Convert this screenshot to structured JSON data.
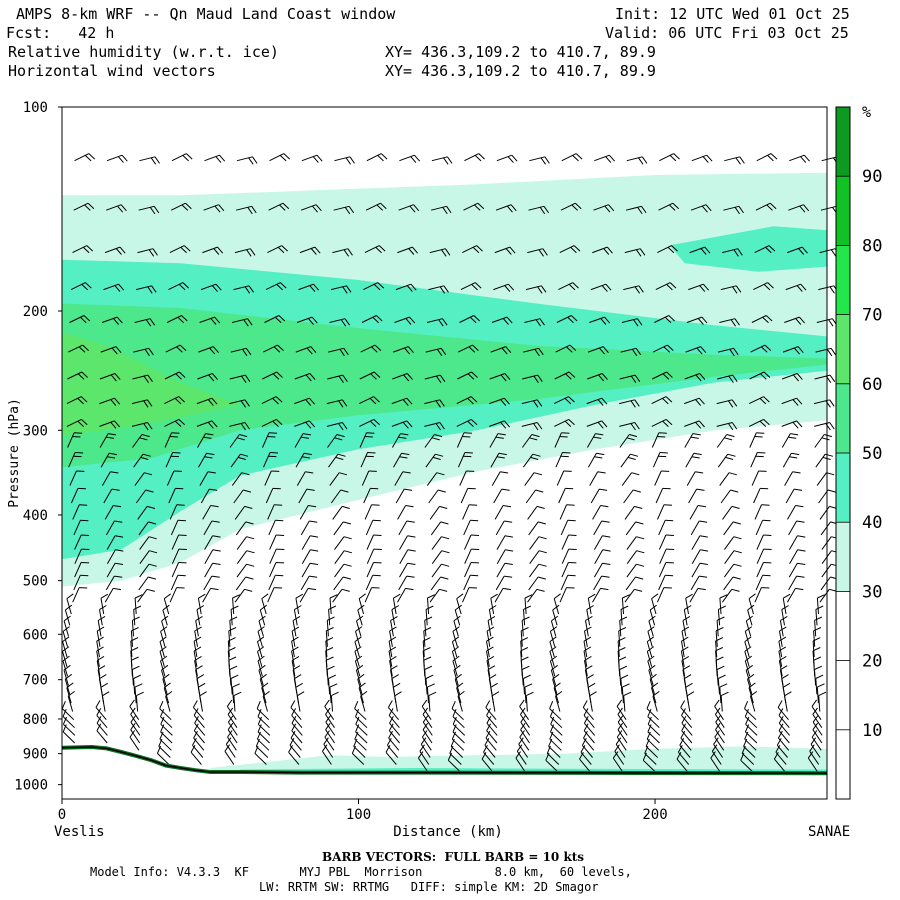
{
  "header": {
    "title": "AMPS 8-km WRF -- Qn Maud Land Coast window",
    "init": "Init: 12 UTC Wed 01 Oct 25",
    "fcst": "Fcst:   42 h",
    "valid": "Valid: 06 UTC Fri 03 Oct 25",
    "field1": "Relative humidity (w.r.t. ice)",
    "field1_xy": "XY= 436.3,109.2 to 410.7, 89.9",
    "field2": "Horizontal wind vectors",
    "field2_xy": "XY= 436.3,109.2 to 410.7, 89.9"
  },
  "chart_data": {
    "type": "heatmap",
    "title": "Relative humidity (w.r.t. ice)",
    "xlabel": "Distance (km)",
    "ylabel": "Pressure (hPa)",
    "xlim": [
      0,
      258
    ],
    "ylim": [
      1050,
      100
    ],
    "y_scale": "log",
    "x_ticks": [
      0,
      100,
      200
    ],
    "y_ticks": [
      100,
      200,
      300,
      400,
      500,
      600,
      700,
      800,
      900,
      1000
    ],
    "x_start_label": "Veslis",
    "x_end_label": "SANAE",
    "colorbar": {
      "unit": "%",
      "ticks": [
        10,
        20,
        30,
        40,
        50,
        60,
        70,
        80,
        90
      ],
      "levels": [
        0,
        30,
        40,
        50,
        60,
        70,
        80,
        90,
        100
      ],
      "colors": [
        "#ffffff",
        "#c8f7e8",
        "#55efc4",
        "#4ee88c",
        "#5ce66b",
        "#23e64a",
        "#11c225",
        "#0d9a20",
        "#0b7022"
      ]
    },
    "rh_bands": [
      {
        "level": 30,
        "color": "#c8f7e8"
      },
      {
        "level": 40,
        "color": "#55efc4"
      },
      {
        "level": 50,
        "color": "#4ee88c"
      },
      {
        "level": 60,
        "color": "#5ce66b"
      }
    ],
    "terrain_hPa": [
      [
        0,
        882
      ],
      [
        5,
        881
      ],
      [
        10,
        880
      ],
      [
        15,
        884
      ],
      [
        20,
        895
      ],
      [
        25,
        907
      ],
      [
        30,
        920
      ],
      [
        35,
        937
      ],
      [
        40,
        945
      ],
      [
        45,
        952
      ],
      [
        50,
        958
      ],
      [
        60,
        958
      ],
      [
        80,
        960
      ],
      [
        120,
        960
      ],
      [
        180,
        961
      ],
      [
        258,
        962
      ]
    ],
    "wind_barbs": {
      "description": "Horizontal wind barbs; full barb = 10 kts"
    },
    "barb_note": "BARB VECTORS:  FULL BARB = 10 kts"
  },
  "footer": {
    "model_info": "Model Info: V4.3.3  KF       MYJ PBL  Morrison          8.0 km,  60 levels,",
    "physics": "LW: RRTM SW: RRTMG   DIFF: simple KM: 2D Smagor"
  }
}
